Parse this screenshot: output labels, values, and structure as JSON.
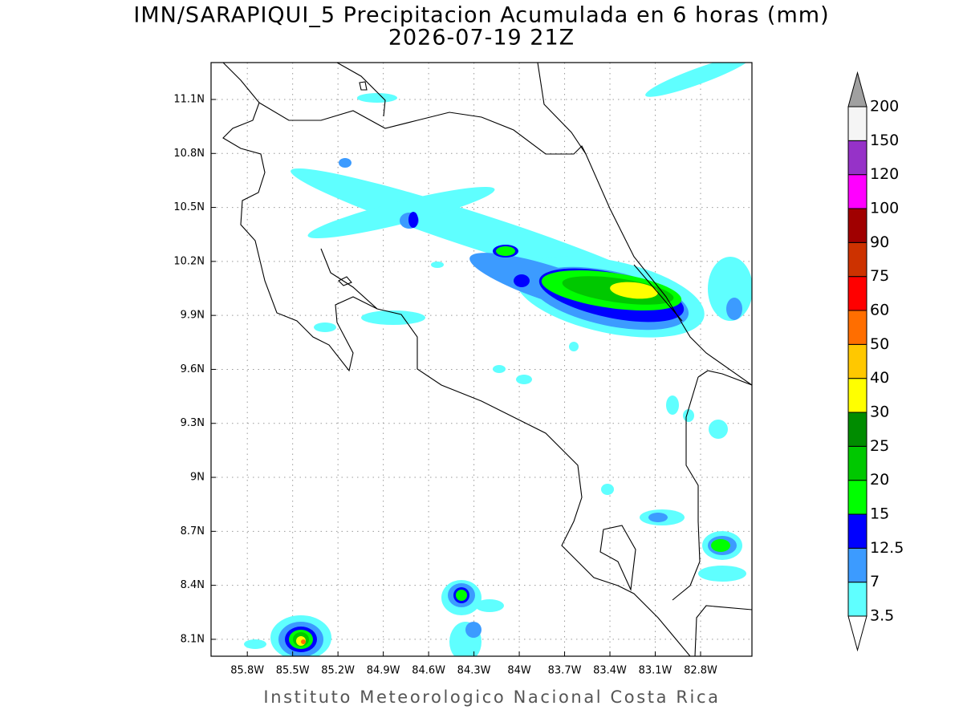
{
  "map": {
    "title": "IMN/SARAPIQUI_5 Precipitacion Acumulada en 6 horas (mm)",
    "subtitle": "2026-07-19 21Z",
    "footer": "Instituto Meteorologico Nacional Costa Rica",
    "lonlim": [
      -86.04,
      -82.46
    ],
    "latlim": [
      8.006,
      11.305
    ],
    "grid": true,
    "xticks": [
      {
        "value": -85.8,
        "label": "85.8W"
      },
      {
        "value": -85.5,
        "label": "85.5W"
      },
      {
        "value": -85.2,
        "label": "85.2W"
      },
      {
        "value": -84.9,
        "label": "84.9W"
      },
      {
        "value": -84.6,
        "label": "84.6W"
      },
      {
        "value": -84.3,
        "label": "84.3W"
      },
      {
        "value": -84,
        "label": "84W"
      },
      {
        "value": -83.7,
        "label": "83.7W"
      },
      {
        "value": -83.4,
        "label": "83.4W"
      },
      {
        "value": -83.1,
        "label": "83.1W"
      },
      {
        "value": -82.8,
        "label": "82.8W"
      }
    ],
    "yticks": [
      {
        "value": 8.1,
        "label": "8.1N"
      },
      {
        "value": 8.4,
        "label": "8.4N"
      },
      {
        "value": 8.7,
        "label": "8.7N"
      },
      {
        "value": 9,
        "label": "9N"
      },
      {
        "value": 9.3,
        "label": "9.3N"
      },
      {
        "value": 9.6,
        "label": "9.6N"
      },
      {
        "value": 9.9,
        "label": "9.9N"
      },
      {
        "value": 10.2,
        "label": "10.2N"
      },
      {
        "value": 10.5,
        "label": "10.5N"
      },
      {
        "value": 10.8,
        "label": "10.8N"
      },
      {
        "value": 11.1,
        "label": "11.1N"
      }
    ],
    "colorbar": {
      "levels": [
        3.5,
        7,
        12.5,
        15,
        20,
        25,
        30,
        40,
        50,
        60,
        75,
        90,
        100,
        120,
        150,
        200
      ],
      "colors": [
        "#5fffff",
        "#3c9bff",
        "#0000ff",
        "#00ff00",
        "#00c800",
        "#008c00",
        "#ffff00",
        "#ffc800",
        "#ff6e00",
        "#ff0000",
        "#cd3200",
        "#a00000",
        "#ff00ff",
        "#9632c8",
        "#f5f5f5"
      ],
      "under_color": "#ffffff",
      "over_color": "#a0a0a0"
    }
  }
}
